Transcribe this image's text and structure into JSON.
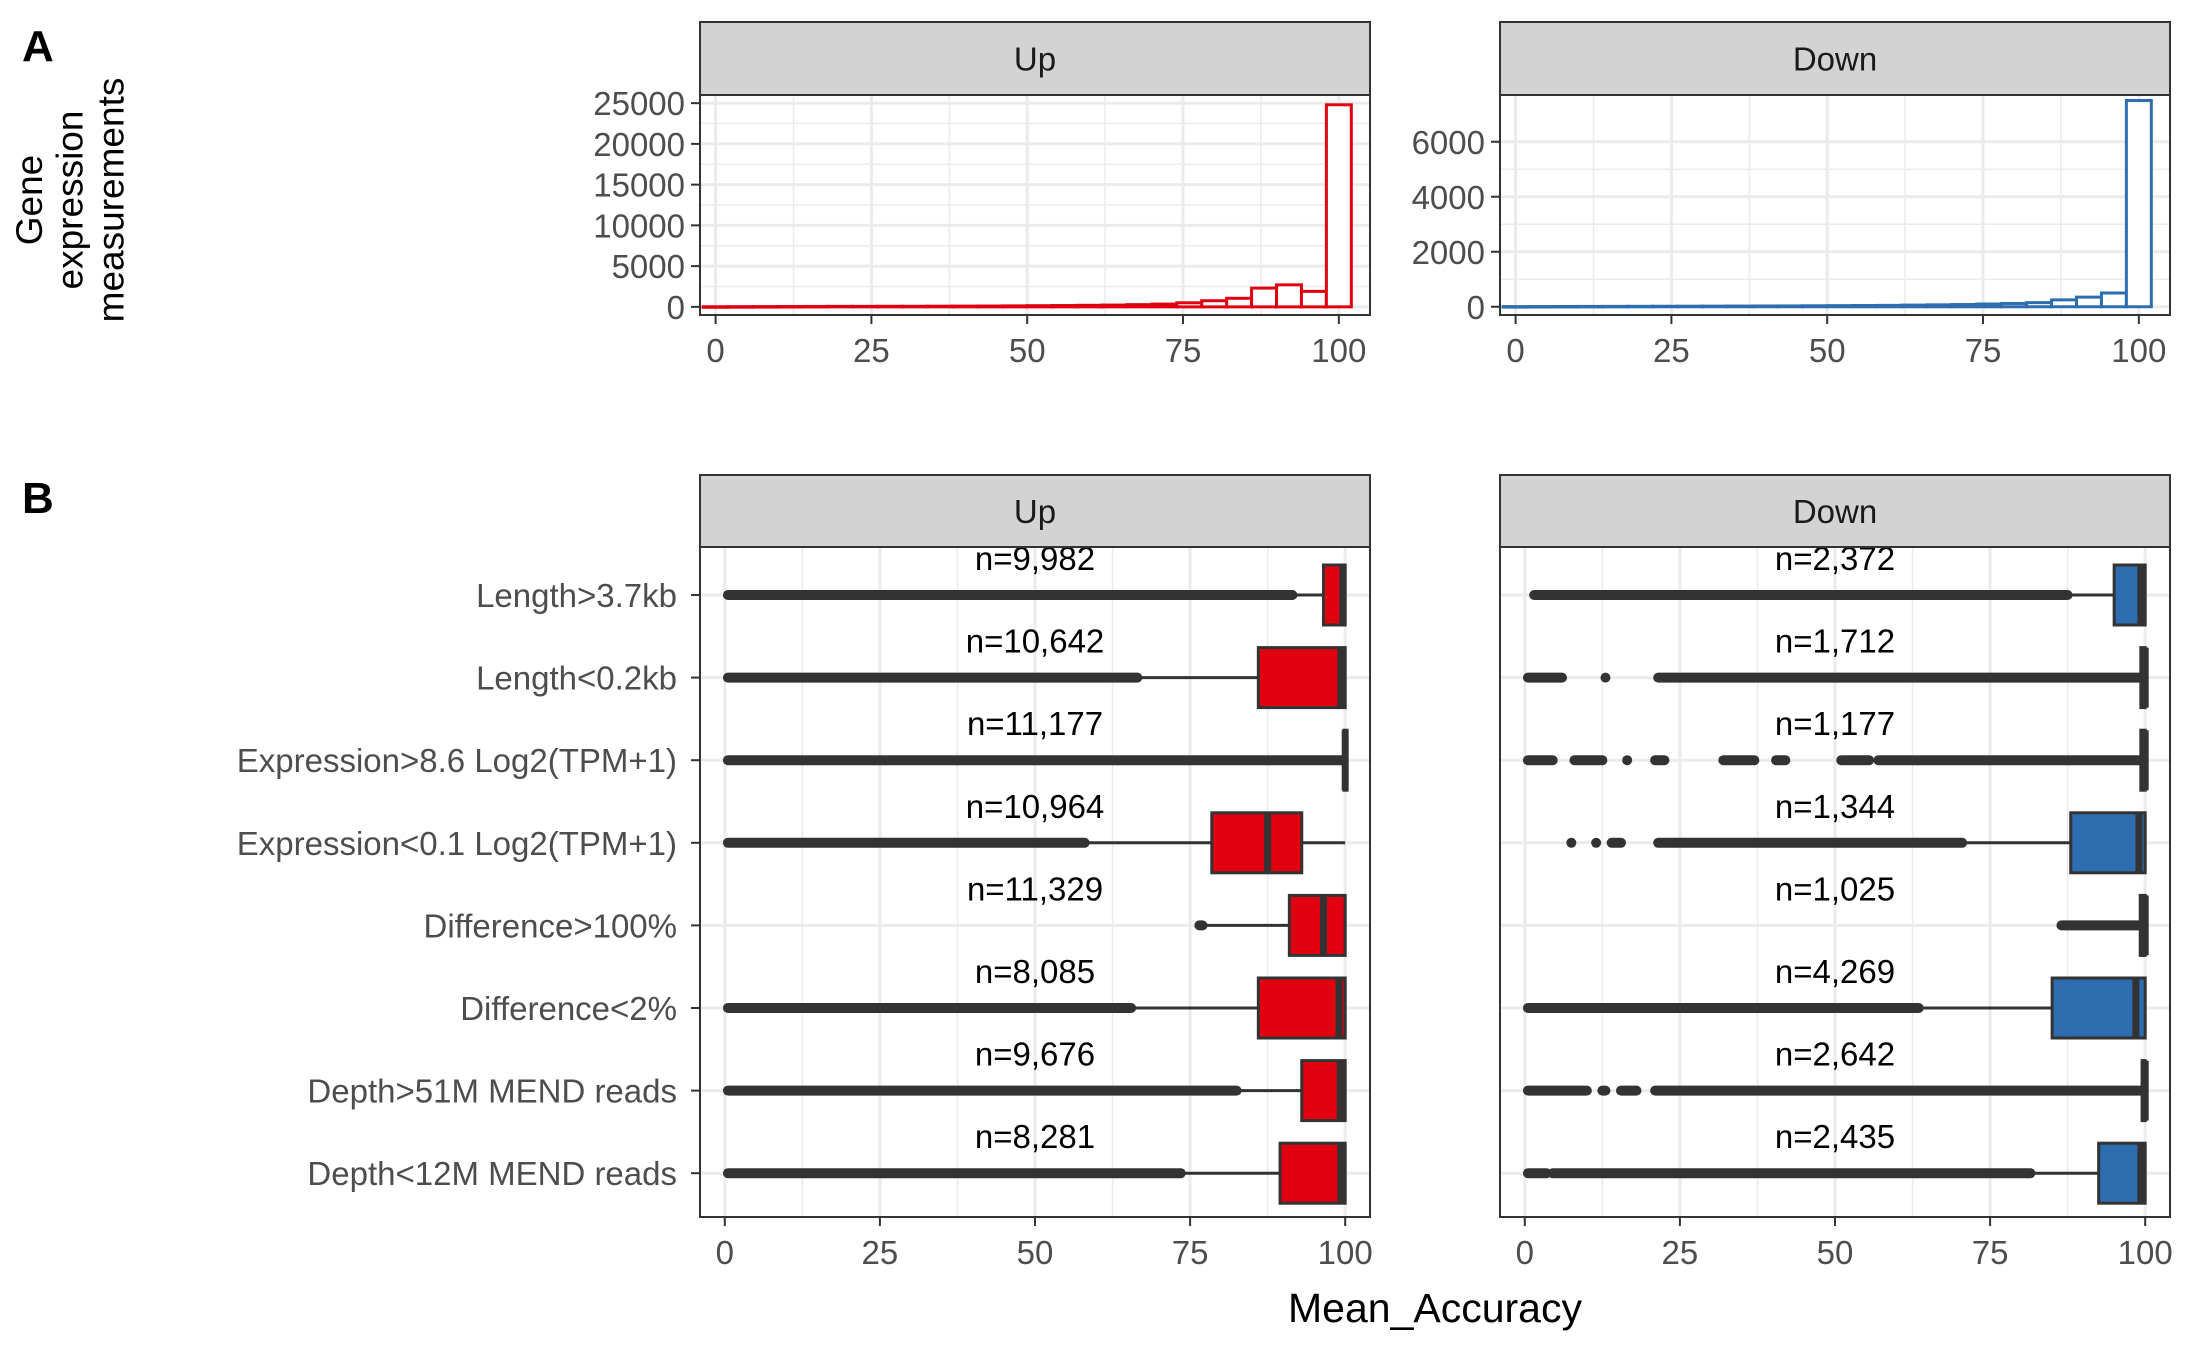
{
  "panel_labels": {
    "a": "A",
    "b": "B"
  },
  "colors": {
    "up": "#E0000F",
    "down": "#2E6DB0",
    "strip": "#D3D3D3",
    "grid": "#EBEBEB",
    "point": "#333333",
    "text": "#4D4D4D"
  },
  "chart_data": [
    {
      "panel": "A",
      "type": "histogram",
      "ylabel": "Gene expression measurements",
      "facets": [
        {
          "name": "Up",
          "color": "#E0000F",
          "xlim": [
            -2.5,
            105
          ],
          "ylim": [
            -1000,
            26000
          ],
          "xticks": [
            0,
            25,
            50,
            75,
            100
          ],
          "yticks": [
            0,
            5000,
            10000,
            15000,
            20000,
            25000
          ],
          "bins": [
            {
              "x0": -2,
              "x1": 2,
              "count": 10
            },
            {
              "x0": 2,
              "x1": 6,
              "count": 20
            },
            {
              "x0": 6,
              "x1": 10,
              "count": 30
            },
            {
              "x0": 10,
              "x1": 14,
              "count": 40
            },
            {
              "x0": 14,
              "x1": 18,
              "count": 50
            },
            {
              "x0": 18,
              "x1": 22,
              "count": 60
            },
            {
              "x0": 22,
              "x1": 26,
              "count": 60
            },
            {
              "x0": 26,
              "x1": 30,
              "count": 70
            },
            {
              "x0": 30,
              "x1": 34,
              "count": 70
            },
            {
              "x0": 34,
              "x1": 38,
              "count": 80
            },
            {
              "x0": 38,
              "x1": 42,
              "count": 90
            },
            {
              "x0": 42,
              "x1": 46,
              "count": 100
            },
            {
              "x0": 46,
              "x1": 50,
              "count": 120
            },
            {
              "x0": 50,
              "x1": 54,
              "count": 140
            },
            {
              "x0": 54,
              "x1": 58,
              "count": 160
            },
            {
              "x0": 58,
              "x1": 62,
              "count": 190
            },
            {
              "x0": 62,
              "x1": 66,
              "count": 220
            },
            {
              "x0": 66,
              "x1": 70,
              "count": 270
            },
            {
              "x0": 70,
              "x1": 74,
              "count": 340
            },
            {
              "x0": 74,
              "x1": 78,
              "count": 500
            },
            {
              "x0": 78,
              "x1": 82,
              "count": 750
            },
            {
              "x0": 82,
              "x1": 86,
              "count": 1050
            },
            {
              "x0": 86,
              "x1": 90,
              "count": 2300
            },
            {
              "x0": 90,
              "x1": 94,
              "count": 2700
            },
            {
              "x0": 94,
              "x1": 98,
              "count": 1900
            },
            {
              "x0": 98,
              "x1": 102,
              "count": 24800
            }
          ]
        },
        {
          "name": "Down",
          "color": "#2E6DB0",
          "xlim": [
            -2.5,
            105
          ],
          "ylim": [
            -300,
            7700
          ],
          "xticks": [
            0,
            25,
            50,
            75,
            100
          ],
          "yticks": [
            0,
            2000,
            4000,
            6000
          ],
          "bins": [
            {
              "x0": -2,
              "x1": 2,
              "count": 5
            },
            {
              "x0": 2,
              "x1": 6,
              "count": 8
            },
            {
              "x0": 6,
              "x1": 10,
              "count": 10
            },
            {
              "x0": 10,
              "x1": 14,
              "count": 12
            },
            {
              "x0": 14,
              "x1": 18,
              "count": 14
            },
            {
              "x0": 18,
              "x1": 22,
              "count": 16
            },
            {
              "x0": 22,
              "x1": 26,
              "count": 18
            },
            {
              "x0": 26,
              "x1": 30,
              "count": 20
            },
            {
              "x0": 30,
              "x1": 34,
              "count": 22
            },
            {
              "x0": 34,
              "x1": 38,
              "count": 25
            },
            {
              "x0": 38,
              "x1": 42,
              "count": 28
            },
            {
              "x0": 42,
              "x1": 46,
              "count": 30
            },
            {
              "x0": 46,
              "x1": 50,
              "count": 35
            },
            {
              "x0": 50,
              "x1": 54,
              "count": 40
            },
            {
              "x0": 54,
              "x1": 58,
              "count": 45
            },
            {
              "x0": 58,
              "x1": 62,
              "count": 50
            },
            {
              "x0": 62,
              "x1": 66,
              "count": 60
            },
            {
              "x0": 66,
              "x1": 70,
              "count": 70
            },
            {
              "x0": 70,
              "x1": 74,
              "count": 80
            },
            {
              "x0": 74,
              "x1": 78,
              "count": 100
            },
            {
              "x0": 78,
              "x1": 82,
              "count": 120
            },
            {
              "x0": 82,
              "x1": 86,
              "count": 150
            },
            {
              "x0": 86,
              "x1": 90,
              "count": 250
            },
            {
              "x0": 90,
              "x1": 94,
              "count": 350
            },
            {
              "x0": 94,
              "x1": 98,
              "count": 500
            },
            {
              "x0": 98,
              "x1": 102,
              "count": 7500
            }
          ]
        }
      ]
    },
    {
      "panel": "B",
      "type": "boxplot",
      "xlabel": "Mean_Accuracy",
      "categories": [
        "Length>3.7kb",
        "Length<0.2kb",
        "Expression>8.6 Log2(TPM+1)",
        "Expression<0.1 Log2(TPM+1)",
        "Difference>100%",
        "Difference<2%",
        "Depth>51M MEND reads",
        "Depth<12M MEND reads"
      ],
      "xlim": [
        -4,
        104
      ],
      "xticks": [
        0,
        25,
        50,
        75,
        100
      ],
      "facets": [
        {
          "name": "Up",
          "color": "#E0000F",
          "boxes": [
            {
              "label": "n=9,982",
              "min": 91.5,
              "q1": 96.5,
              "median": 99.6,
              "q3": 100,
              "max": 100,
              "outliers": [
                [
                  0.5,
                  91.5
                ]
              ]
            },
            {
              "label": "n=10,642",
              "min": 66.5,
              "q1": 86,
              "median": 99.3,
              "q3": 100,
              "max": 100,
              "outliers": [
                [
                  0.5,
                  66.5
                ]
              ]
            },
            {
              "label": "n=11,177",
              "min": 99.8,
              "q1": 99.8,
              "median": 100,
              "q3": 100,
              "max": 100,
              "outliers": [
                [
                  0.5,
                  99.5
                ]
              ]
            },
            {
              "label": "n=10,964",
              "min": 58,
              "q1": 78.5,
              "median": 87.5,
              "q3": 93,
              "max": 100,
              "outliers": [
                [
                  0.5,
                  58
                ]
              ]
            },
            {
              "label": "n=11,329",
              "min": 77,
              "q1": 91,
              "median": 96.5,
              "q3": 100,
              "max": 100,
              "outliers": [
                [
                  76.5,
                  77
                ]
              ]
            },
            {
              "label": "n=8,085",
              "min": 65.5,
              "q1": 86,
              "median": 99,
              "q3": 100,
              "max": 100,
              "outliers": [
                [
                  0.5,
                  65.5
                ]
              ]
            },
            {
              "label": "n=9,676",
              "min": 82.5,
              "q1": 93,
              "median": 99.2,
              "q3": 100,
              "max": 100,
              "outliers": [
                [
                  0.5,
                  82.5
                ]
              ]
            },
            {
              "label": "n=8,281",
              "min": 73.5,
              "q1": 89.5,
              "median": 99.3,
              "q3": 100,
              "max": 100,
              "outliers": [
                [
                  0.5,
                  73.5
                ]
              ]
            }
          ]
        },
        {
          "name": "Down",
          "color": "#2E6DB0",
          "boxes": [
            {
              "label": "n=2,372",
              "min": 87.5,
              "q1": 95,
              "median": 99.3,
              "q3": 100,
              "max": 100,
              "outliers": [
                [
                  1.5,
                  87.5
                ]
              ]
            },
            {
              "label": "n=1,712",
              "min": 99.3,
              "q1": 99.3,
              "median": 100,
              "q3": 100,
              "max": 100,
              "outliers": [
                [
                  0.5,
                  6
                ],
                [
                  13,
                  13.2
                ],
                [
                  21.5,
                  99.3
                ]
              ]
            },
            {
              "label": "n=1,177",
              "min": 99.3,
              "q1": 99.3,
              "median": 100,
              "q3": 100,
              "max": 100,
              "outliers": [
                [
                  0.5,
                  4.5
                ],
                [
                  8,
                  12.5
                ],
                [
                  16.5,
                  16.7
                ],
                [
                  21,
                  22.5
                ],
                [
                  32,
                  37
                ],
                [
                  40.5,
                  42
                ],
                [
                  51,
                  55.5
                ],
                [
                  57,
                  99.3
                ]
              ]
            },
            {
              "label": "n=1,344",
              "min": 70.5,
              "q1": 88,
              "median": 99,
              "q3": 100,
              "max": 100,
              "outliers": [
                [
                  7.5,
                  7.7
                ],
                [
                  11.5,
                  11.7
                ],
                [
                  14,
                  15.5
                ],
                [
                  21.5,
                  70.5
                ]
              ]
            },
            {
              "label": "n=1,025",
              "min": 99.2,
              "q1": 99.2,
              "median": 100,
              "q3": 100,
              "max": 100,
              "outliers": [
                [
                  86.5,
                  99.2
                ]
              ]
            },
            {
              "label": "n=4,269",
              "min": 63.5,
              "q1": 85,
              "median": 98.5,
              "q3": 100,
              "max": 100,
              "outliers": [
                [
                  0.5,
                  63.5
                ]
              ]
            },
            {
              "label": "n=2,642",
              "min": 99.5,
              "q1": 99.5,
              "median": 100,
              "q3": 100,
              "max": 100,
              "outliers": [
                [
                  0.5,
                  10
                ],
                [
                  12.5,
                  13
                ],
                [
                  15.5,
                  18
                ],
                [
                  21,
                  99.5
                ]
              ]
            },
            {
              "label": "n=2,435",
              "min": 81.5,
              "q1": 92.5,
              "median": 99.3,
              "q3": 100,
              "max": 100,
              "outliers": [
                [
                  0.5,
                  3.5
                ],
                [
                  4.5,
                  81.5
                ]
              ]
            }
          ]
        }
      ]
    }
  ]
}
